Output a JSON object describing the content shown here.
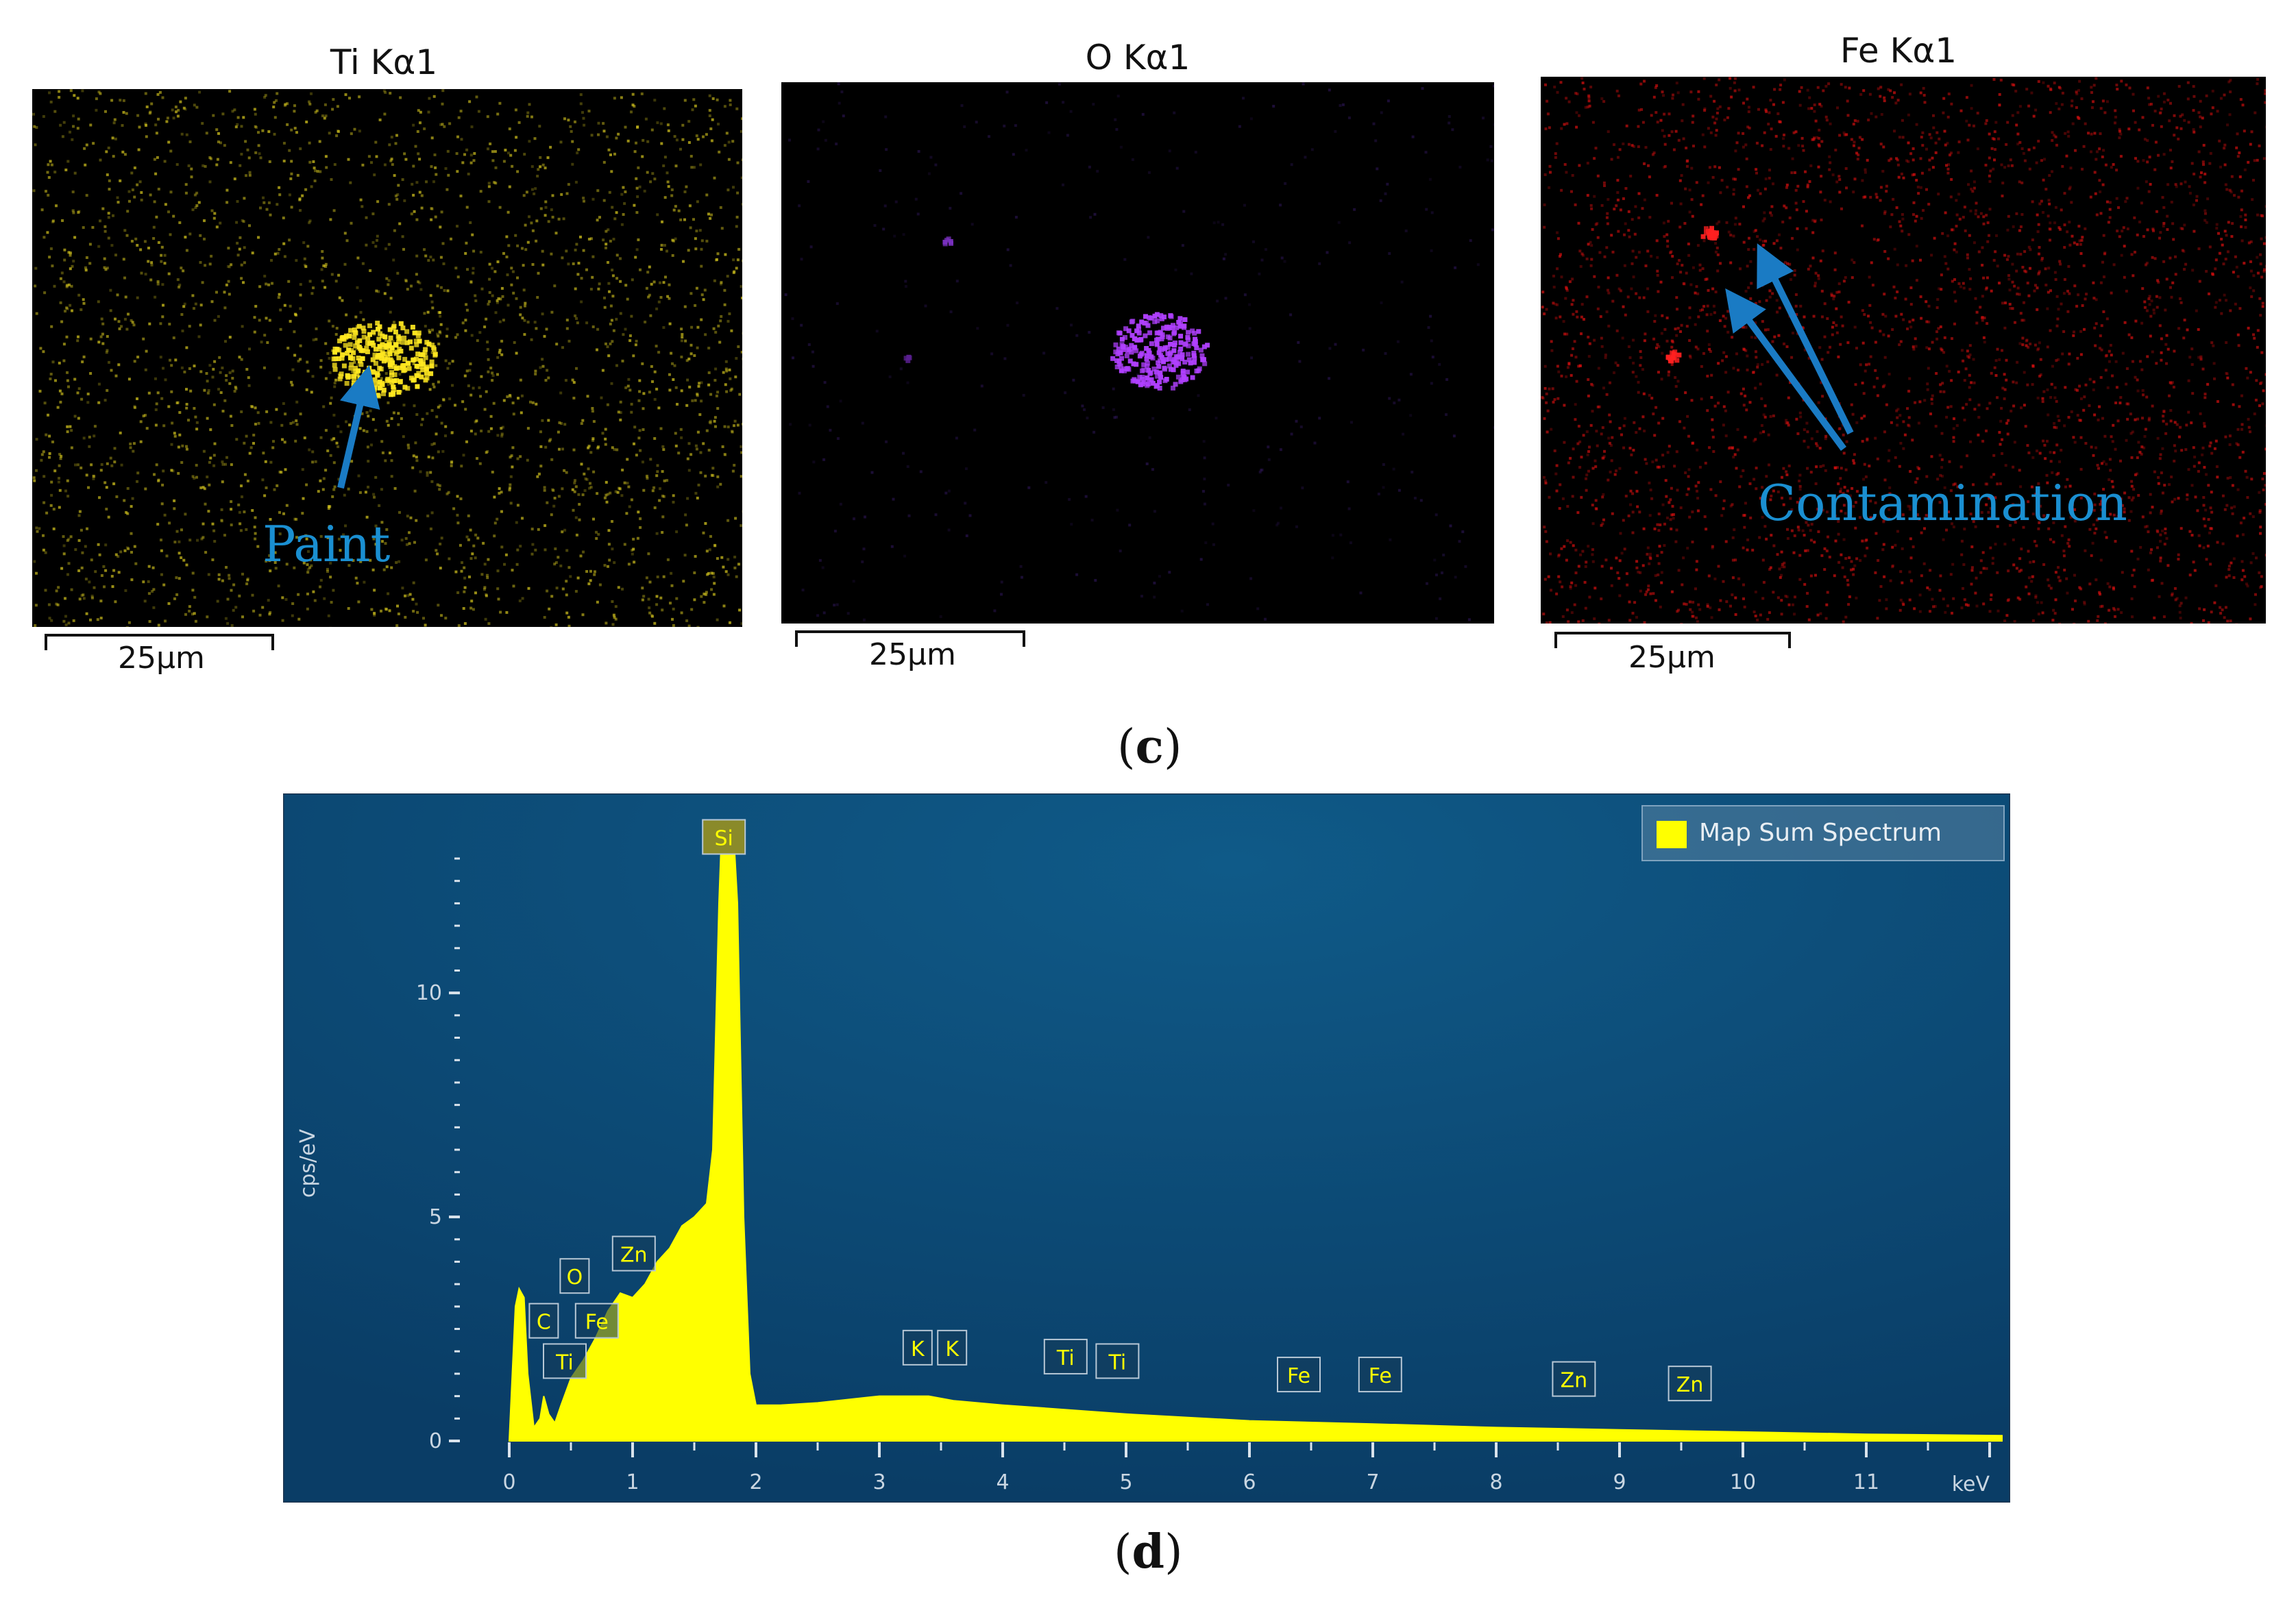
{
  "figure_c": {
    "maps": [
      {
        "title": "Ti Kα1",
        "color": "#e0d020",
        "scale_label": "25μm",
        "annotation": "Paint"
      },
      {
        "title": "O Kα1",
        "color": "#8a3ad8",
        "scale_label": "25μm"
      },
      {
        "title": "Fe Kα1",
        "color": "#e01010",
        "scale_label": "25μm",
        "annotation": "Contamination"
      }
    ],
    "caption_open": "(",
    "caption_letter": "c",
    "caption_close": ")"
  },
  "figure_d": {
    "caption_open": "(",
    "caption_letter": "d",
    "caption_close": ")"
  },
  "chart_data": {
    "type": "area",
    "title": "",
    "xlabel": "keV",
    "ylabel": "cps/eV",
    "xlim": [
      -0.4,
      12.1
    ],
    "ylim": [
      0,
      13
    ],
    "x_ticks": [
      0,
      1,
      2,
      3,
      4,
      5,
      6,
      7,
      8,
      9,
      10,
      11
    ],
    "y_ticks": [
      0,
      5,
      10
    ],
    "legend": {
      "label": "Map Sum Spectrum",
      "color": "#ffff00",
      "placement": "top-right"
    },
    "series": [
      {
        "name": "Map Sum Spectrum",
        "x": [
          0.0,
          0.05,
          0.08,
          0.12,
          0.15,
          0.2,
          0.25,
          0.28,
          0.32,
          0.37,
          0.42,
          0.5,
          0.6,
          0.7,
          0.8,
          0.9,
          1.0,
          1.1,
          1.2,
          1.3,
          1.4,
          1.5,
          1.6,
          1.65,
          1.7,
          1.72,
          1.74,
          1.82,
          1.85,
          1.9,
          1.95,
          2.0,
          2.2,
          2.5,
          3.0,
          3.4,
          3.6,
          4.0,
          4.5,
          5.0,
          6.0,
          7.0,
          8.0,
          9.0,
          10.0,
          11.0,
          12.1
        ],
        "y": [
          0.0,
          3.0,
          3.4,
          3.2,
          1.5,
          0.3,
          0.5,
          1.0,
          0.6,
          0.4,
          0.8,
          1.4,
          1.8,
          2.3,
          2.9,
          3.3,
          3.2,
          3.5,
          4.0,
          4.3,
          4.8,
          5.0,
          5.3,
          6.5,
          12.0,
          13.5,
          13.5,
          13.5,
          12.0,
          5.0,
          1.5,
          0.8,
          0.8,
          0.85,
          1.0,
          1.0,
          0.9,
          0.8,
          0.7,
          0.6,
          0.45,
          0.38,
          0.3,
          0.25,
          0.2,
          0.15,
          0.12
        ]
      }
    ],
    "peak_labels": [
      {
        "label": "Si",
        "x": 1.74,
        "y": 13.1
      },
      {
        "label": "C",
        "x": 0.28,
        "y": 2.3
      },
      {
        "label": "O",
        "x": 0.53,
        "y": 3.3
      },
      {
        "label": "Ti",
        "x": 0.45,
        "y": 1.4
      },
      {
        "label": "Fe",
        "x": 0.71,
        "y": 2.3
      },
      {
        "label": "Zn",
        "x": 1.01,
        "y": 3.8
      },
      {
        "label": "K",
        "x": 3.31,
        "y": 1.7
      },
      {
        "label": "K",
        "x": 3.59,
        "y": 1.7
      },
      {
        "label": "Ti",
        "x": 4.51,
        "y": 1.5
      },
      {
        "label": "Ti",
        "x": 4.93,
        "y": 1.4
      },
      {
        "label": "Fe",
        "x": 6.4,
        "y": 1.1
      },
      {
        "label": "Fe",
        "x": 7.06,
        "y": 1.1
      },
      {
        "label": "Zn",
        "x": 8.63,
        "y": 1.0
      },
      {
        "label": "Zn",
        "x": 9.57,
        "y": 0.9
      }
    ]
  }
}
